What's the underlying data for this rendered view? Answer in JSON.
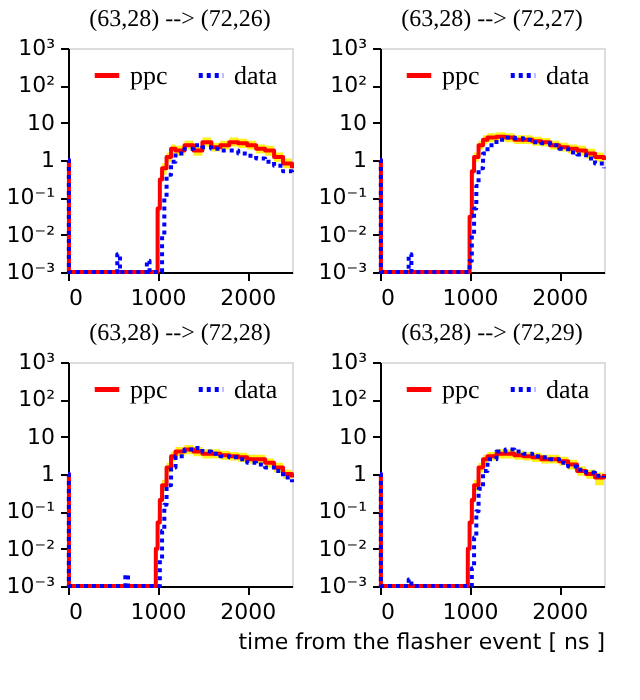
{
  "chart_data": [
    {
      "type": "step",
      "title": "(63,28) --> (72,26)",
      "xlim": [
        0,
        2500
      ],
      "xticks": [
        0,
        1000,
        2000
      ],
      "ylim": [
        0.001,
        1000
      ],
      "log": "y",
      "grid": false,
      "legend": "top",
      "marker": "none",
      "yticks": [
        {
          "value": 0.001,
          "label": "10⁻³"
        },
        {
          "value": 0.01,
          "label": "10⁻²"
        },
        {
          "value": 0.1,
          "label": "10⁻¹"
        },
        1,
        10,
        {
          "value": 100,
          "label": "10²"
        },
        {
          "value": 1000,
          "label": "10³"
        }
      ],
      "series": [
        {
          "name": "ppc",
          "color": "#ff0000",
          "line_style": "solid",
          "x": [
            0,
            10,
            1000,
            1025,
            1050,
            1100,
            1150,
            1200,
            1300,
            1400,
            1500,
            1600,
            1700,
            1800,
            1900,
            2000,
            2100,
            2200,
            2300,
            2400,
            2500
          ],
          "values": [
            1,
            0.001,
            0.05,
            0.3,
            0.6,
            1.2,
            2,
            1.8,
            2.5,
            1.8,
            3,
            2.2,
            2.5,
            3,
            2.8,
            2.5,
            2,
            1.8,
            1.2,
            0.8,
            0.6
          ],
          "lower": [
            null,
            null,
            0.03,
            0.2,
            0.4,
            0.9,
            1.5,
            1.3,
            1.9,
            1.3,
            2.3,
            1.7,
            1.9,
            2.3,
            2.1,
            1.9,
            1.5,
            1.3,
            0.9,
            0.6,
            0.45
          ],
          "upper": [
            null,
            null,
            0.08,
            0.45,
            0.8,
            1.6,
            2.6,
            2.4,
            3.3,
            2.4,
            4,
            2.9,
            3.3,
            4,
            3.7,
            3.3,
            2.6,
            2.4,
            1.6,
            1.1,
            0.8
          ]
        },
        {
          "name": "data",
          "color": "#0000ff",
          "line_style": "dotted",
          "x": [
            0,
            10,
            550,
            580,
            880,
            910,
            1050,
            1075,
            1100,
            1150,
            1200,
            1300,
            1400,
            1500,
            1600,
            1700,
            1800,
            1900,
            2000,
            2100,
            2200,
            2300,
            2400,
            2500
          ],
          "values": [
            1,
            0.001,
            0.003,
            0.001,
            0.002,
            0.001,
            0.01,
            0.1,
            0.4,
            0.9,
            1.5,
            2,
            2.5,
            2.2,
            2,
            1.8,
            1.8,
            1.5,
            1.3,
            1.1,
            0.9,
            0.7,
            0.5,
            0.4
          ]
        }
      ]
    },
    {
      "type": "step",
      "title": "(63,28) --> (72,27)",
      "xlim": [
        0,
        2500
      ],
      "xticks": [
        0,
        1000,
        2000
      ],
      "ylim": [
        0.001,
        1000
      ],
      "log": "y",
      "grid": false,
      "legend": "top",
      "marker": "none",
      "yticks": [
        {
          "value": 0.001,
          "label": "10⁻³"
        },
        {
          "value": 0.01,
          "label": "10⁻²"
        },
        {
          "value": 0.1,
          "label": "10⁻¹"
        },
        1,
        10,
        {
          "value": 100,
          "label": "10²"
        },
        {
          "value": 1000,
          "label": "10³"
        }
      ],
      "series": [
        {
          "name": "ppc",
          "color": "#ff0000",
          "line_style": "solid",
          "x": [
            0,
            10,
            1000,
            1025,
            1050,
            1100,
            1150,
            1200,
            1300,
            1400,
            1500,
            1600,
            1700,
            1800,
            1900,
            2000,
            2100,
            2200,
            2300,
            2400,
            2500
          ],
          "values": [
            1,
            0.001,
            0.03,
            0.5,
            1.2,
            2.5,
            3.5,
            4,
            4.2,
            4,
            3.5,
            3.5,
            3.2,
            3,
            2.5,
            2.2,
            2,
            1.8,
            1.5,
            1.2,
            1
          ],
          "lower": [
            null,
            null,
            0.02,
            0.35,
            0.9,
            1.9,
            2.7,
            3,
            3.2,
            3,
            2.7,
            2.7,
            2.4,
            2.3,
            1.9,
            1.7,
            1.5,
            1.3,
            1.1,
            0.9,
            0.75
          ],
          "upper": [
            null,
            null,
            0.05,
            0.7,
            1.6,
            3.3,
            4.6,
            5.2,
            5.5,
            5.2,
            4.6,
            4.6,
            4.2,
            3.9,
            3.3,
            2.9,
            2.6,
            2.4,
            2,
            1.6,
            1.3
          ]
        },
        {
          "name": "data",
          "color": "#0000ff",
          "line_style": "dotted",
          "x": [
            0,
            10,
            320,
            350,
            1000,
            1025,
            1050,
            1075,
            1100,
            1150,
            1200,
            1300,
            1400,
            1500,
            1600,
            1700,
            1800,
            1900,
            2000,
            2100,
            2200,
            2300,
            2400,
            2500
          ],
          "values": [
            1,
            0.001,
            0.003,
            0.001,
            0.002,
            0.01,
            0.05,
            0.2,
            0.6,
            1.5,
            2.5,
            3.5,
            4,
            3.8,
            3.5,
            3,
            2.8,
            2.5,
            2,
            1.6,
            1.4,
            1.1,
            0.8,
            0.6
          ]
        }
      ]
    },
    {
      "type": "step",
      "title": "(63,28) --> (72,28)",
      "xlim": [
        0,
        2500
      ],
      "xticks": [
        0,
        1000,
        2000
      ],
      "ylim": [
        0.001,
        1000
      ],
      "log": "y",
      "grid": false,
      "legend": "top",
      "marker": "none",
      "yticks": [
        {
          "value": 0.001,
          "label": "10⁻³"
        },
        {
          "value": 0.01,
          "label": "10⁻²"
        },
        {
          "value": 0.1,
          "label": "10⁻¹"
        },
        1,
        10,
        {
          "value": 100,
          "label": "10²"
        },
        {
          "value": 1000,
          "label": "10³"
        }
      ],
      "series": [
        {
          "name": "ppc",
          "color": "#ff0000",
          "line_style": "solid",
          "x": [
            0,
            10,
            980,
            1000,
            1025,
            1050,
            1100,
            1150,
            1200,
            1300,
            1400,
            1500,
            1600,
            1700,
            1800,
            1900,
            2000,
            2100,
            2200,
            2300,
            2400,
            2500
          ],
          "values": [
            1,
            0.001,
            0.01,
            0.05,
            0.2,
            0.5,
            1.5,
            3,
            4,
            4.5,
            4,
            3.5,
            3.5,
            3.2,
            3,
            2.8,
            2.5,
            2.5,
            2,
            1.5,
            1,
            0.8
          ],
          "lower": [
            null,
            null,
            0.006,
            0.03,
            0.14,
            0.35,
            1.1,
            2.2,
            3,
            3.4,
            3,
            2.6,
            2.6,
            2.4,
            2.3,
            2.1,
            1.9,
            1.9,
            1.5,
            1.1,
            0.75,
            0.6
          ],
          "upper": [
            null,
            null,
            0.015,
            0.08,
            0.3,
            0.7,
            2,
            4,
            5.3,
            6,
            5.3,
            4.6,
            4.6,
            4.2,
            3.9,
            3.7,
            3.3,
            3.3,
            2.6,
            2,
            1.3,
            1.1
          ]
        },
        {
          "name": "data",
          "color": "#0000ff",
          "line_style": "dotted",
          "x": [
            0,
            10,
            640,
            670,
            1025,
            1050,
            1075,
            1100,
            1150,
            1200,
            1300,
            1400,
            1500,
            1600,
            1700,
            1800,
            1900,
            2000,
            2100,
            2200,
            2300,
            2400,
            2500
          ],
          "values": [
            1,
            0.001,
            0.002,
            0.001,
            0.005,
            0.03,
            0.15,
            0.5,
            1.5,
            3,
            4.5,
            5,
            4,
            3.5,
            3,
            2.8,
            2.5,
            2,
            1.8,
            1.5,
            1.2,
            0.8,
            0.6
          ]
        }
      ]
    },
    {
      "type": "step",
      "title": "(63,28) --> (72,29)",
      "xlim": [
        0,
        2500
      ],
      "xticks": [
        0,
        1000,
        2000
      ],
      "ylim": [
        0.001,
        1000
      ],
      "log": "y",
      "grid": false,
      "legend": "top",
      "marker": "none",
      "xlabel": "time from the flasher event [ ns ]",
      "yticks": [
        {
          "value": 0.001,
          "label": "10⁻³"
        },
        {
          "value": 0.01,
          "label": "10⁻²"
        },
        {
          "value": 0.1,
          "label": "10⁻¹"
        },
        1,
        10,
        {
          "value": 100,
          "label": "10²"
        },
        {
          "value": 1000,
          "label": "10³"
        }
      ],
      "series": [
        {
          "name": "ppc",
          "color": "#ff0000",
          "line_style": "solid",
          "x": [
            0,
            10,
            980,
            1000,
            1025,
            1050,
            1100,
            1150,
            1200,
            1300,
            1400,
            1500,
            1600,
            1700,
            1800,
            1900,
            2000,
            2100,
            2200,
            2300,
            2400,
            2500
          ],
          "values": [
            1,
            0.001,
            0.01,
            0.05,
            0.2,
            0.5,
            1.5,
            2.5,
            3,
            3.5,
            3.5,
            3.2,
            3,
            2.8,
            2.5,
            2.5,
            2.2,
            1.8,
            1.2,
            1,
            0.8,
            1
          ],
          "lower": [
            null,
            null,
            0.006,
            0.03,
            0.14,
            0.35,
            1.1,
            1.9,
            2.3,
            2.6,
            2.6,
            2.4,
            2.3,
            2.1,
            1.9,
            1.9,
            1.7,
            1.3,
            0.9,
            0.75,
            0.5,
            0.7
          ],
          "upper": [
            null,
            null,
            0.015,
            0.08,
            0.3,
            0.7,
            2,
            3.3,
            3.9,
            4.6,
            4.6,
            4.2,
            3.9,
            3.7,
            3.3,
            3.3,
            2.9,
            2.4,
            1.6,
            1.3,
            1.1,
            1.4
          ]
        },
        {
          "name": "data",
          "color": "#0000ff",
          "line_style": "dotted",
          "x": [
            0,
            10,
            320,
            350,
            1025,
            1050,
            1075,
            1100,
            1150,
            1200,
            1300,
            1400,
            1500,
            1600,
            1700,
            1800,
            1900,
            2000,
            2100,
            2200,
            2300,
            2400,
            2500
          ],
          "values": [
            1,
            0.001,
            0.0015,
            0.001,
            0.003,
            0.02,
            0.1,
            0.4,
            1.2,
            2.5,
            4,
            4.5,
            4,
            3.5,
            3,
            2.8,
            2.5,
            2,
            1.6,
            1.3,
            1.1,
            0.9,
            0.8
          ]
        }
      ]
    }
  ]
}
